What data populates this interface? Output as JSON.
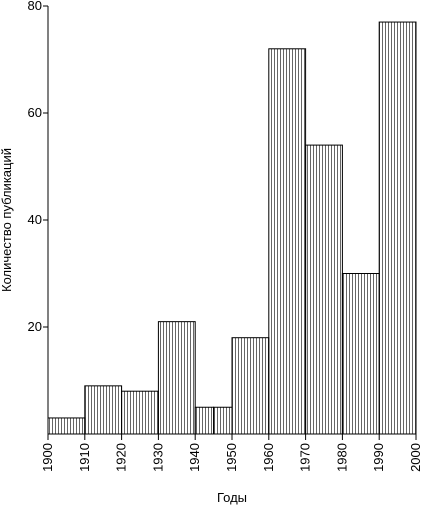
{
  "chart_data": {
    "type": "bar",
    "title": "",
    "xlabel": "Годы",
    "ylabel": "Количество публикаций",
    "x_ticks": [
      "1900",
      "1910",
      "1920",
      "1930",
      "1940",
      "1950",
      "1960",
      "1970",
      "1980",
      "1990",
      "2000"
    ],
    "y_ticks": [
      "20",
      "40",
      "60",
      "80"
    ],
    "xlim": [
      1900,
      2000
    ],
    "ylim": [
      0,
      80
    ],
    "bins": [
      {
        "start": 1900,
        "end": 1910,
        "value": 3
      },
      {
        "start": 1910,
        "end": 1920,
        "value": 9
      },
      {
        "start": 1920,
        "end": 1930,
        "value": 8
      },
      {
        "start": 1930,
        "end": 1940,
        "value": 21
      },
      {
        "start": 1940,
        "end": 1945,
        "value": 5
      },
      {
        "start": 1945,
        "end": 1950,
        "value": 5
      },
      {
        "start": 1950,
        "end": 1960,
        "value": 18
      },
      {
        "start": 1960,
        "end": 1970,
        "value": 72
      },
      {
        "start": 1970,
        "end": 1980,
        "value": 54
      },
      {
        "start": 1980,
        "end": 1990,
        "value": 30
      },
      {
        "start": 1990,
        "end": 2000,
        "value": 77
      }
    ],
    "fill_pattern": "vertical-hatch",
    "bar_color": "#000000",
    "grid": false
  }
}
